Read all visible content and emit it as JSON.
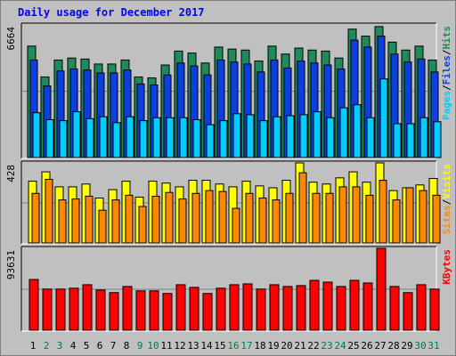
{
  "title": "Daily usage for December 2017",
  "colors": {
    "hits": "#1f8a5a",
    "files": "#0a3fe0",
    "pages": "#00ccff",
    "visits": "#ffff00",
    "sites": "#ff8800",
    "kbytes": "#ff0000",
    "weekend_day": "#008040",
    "weekday_day": "#000000"
  },
  "chart_data": [
    {
      "type": "bar",
      "title": "Daily usage for December 2017",
      "categories": [
        "1",
        "2",
        "3",
        "4",
        "5",
        "6",
        "7",
        "8",
        "9",
        "10",
        "11",
        "12",
        "13",
        "14",
        "15",
        "16",
        "17",
        "18",
        "19",
        "20",
        "21",
        "22",
        "23",
        "24",
        "25",
        "26",
        "27",
        "28",
        "29",
        "30",
        "31"
      ],
      "weekend_days": [
        "2",
        "3",
        "9",
        "10",
        "16",
        "17",
        "23",
        "24",
        "30",
        "31"
      ],
      "ymax_label": "6664",
      "ylim": [
        0,
        6664
      ],
      "right_label_parts": [
        {
          "text": "Pages",
          "series": "pages"
        },
        {
          "text": "/",
          "series": null
        },
        {
          "text": "Files",
          "series": "files"
        },
        {
          "text": "/",
          "series": null
        },
        {
          "text": "Hits",
          "series": "hits"
        }
      ],
      "series": [
        {
          "name": "Hits",
          "key": "hits",
          "values": [
            5600,
            4050,
            4900,
            5000,
            4950,
            4700,
            4700,
            4900,
            4050,
            4000,
            4650,
            5350,
            5250,
            4750,
            5550,
            5450,
            5400,
            4850,
            5600,
            5200,
            5500,
            5400,
            5350,
            5000,
            6450,
            6100,
            6580,
            5800,
            5400,
            5600,
            4900
          ]
        },
        {
          "name": "Files",
          "key": "files",
          "values": [
            4900,
            3600,
            4350,
            4450,
            4400,
            4250,
            4250,
            4400,
            3700,
            3650,
            4150,
            4750,
            4600,
            4150,
            4900,
            4800,
            4700,
            4300,
            4900,
            4500,
            4850,
            4750,
            4650,
            4450,
            5900,
            5550,
            6100,
            5200,
            4800,
            4950,
            4300
          ]
        },
        {
          "name": "Pages",
          "key": "pages",
          "values": [
            2250,
            1900,
            1850,
            2300,
            1950,
            2050,
            1750,
            2050,
            1850,
            2000,
            2000,
            2000,
            1900,
            1650,
            1850,
            2200,
            2150,
            1850,
            2050,
            2100,
            2150,
            2300,
            2000,
            2500,
            2650,
            2000,
            3950,
            1700,
            1700,
            2000,
            1800
          ]
        }
      ]
    },
    {
      "type": "bar",
      "categories": [
        "1",
        "2",
        "3",
        "4",
        "5",
        "6",
        "7",
        "8",
        "9",
        "10",
        "11",
        "12",
        "13",
        "14",
        "15",
        "16",
        "17",
        "18",
        "19",
        "20",
        "21",
        "22",
        "23",
        "24",
        "25",
        "26",
        "27",
        "28",
        "29",
        "30",
        "31"
      ],
      "ymax_label": "428",
      "ylim": [
        0,
        428
      ],
      "right_label_parts": [
        {
          "text": "Sites",
          "series": "sites"
        },
        {
          "text": "/",
          "series": null
        },
        {
          "text": "Visits",
          "series": "visits"
        }
      ],
      "series": [
        {
          "name": "Visits",
          "key": "visits",
          "values": [
            330,
            380,
            300,
            300,
            315,
            240,
            285,
            330,
            245,
            330,
            320,
            300,
            335,
            335,
            315,
            300,
            330,
            305,
            295,
            335,
            428,
            325,
            315,
            348,
            380,
            325,
            428,
            280,
            295,
            310,
            345
          ]
        },
        {
          "name": "Sites",
          "key": "sites",
          "values": [
            265,
            340,
            230,
            235,
            250,
            175,
            230,
            255,
            195,
            250,
            270,
            235,
            265,
            280,
            275,
            185,
            265,
            240,
            230,
            265,
            375,
            265,
            265,
            300,
            300,
            255,
            335,
            230,
            295,
            280,
            255
          ]
        }
      ]
    },
    {
      "type": "bar",
      "categories": [
        "1",
        "2",
        "3",
        "4",
        "5",
        "6",
        "7",
        "8",
        "9",
        "10",
        "11",
        "12",
        "13",
        "14",
        "15",
        "16",
        "17",
        "18",
        "19",
        "20",
        "21",
        "22",
        "23",
        "24",
        "25",
        "26",
        "27",
        "28",
        "29",
        "30",
        "31"
      ],
      "ymax_label": "93631",
      "ylim": [
        0,
        93631
      ],
      "right_label_parts": [
        {
          "text": "KBytes",
          "series": "kbytes"
        }
      ],
      "series": [
        {
          "name": "KBytes",
          "key": "kbytes",
          "values": [
            58000,
            47000,
            47000,
            48000,
            52000,
            46000,
            43000,
            50000,
            45000,
            45000,
            42000,
            52000,
            49000,
            42000,
            48000,
            52000,
            53000,
            47000,
            52000,
            50000,
            51000,
            57000,
            55000,
            50000,
            57000,
            54000,
            93631,
            50000,
            43000,
            52000,
            47000
          ]
        }
      ]
    }
  ]
}
